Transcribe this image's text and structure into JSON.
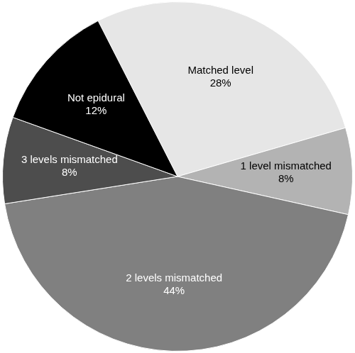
{
  "chart_data": {
    "type": "pie",
    "categories": [
      "Matched level",
      "1 level mismatched",
      "2 levels mismatched",
      "3 levels mismatched",
      "Not epidural"
    ],
    "values": [
      28,
      8,
      44,
      8,
      12
    ],
    "value_labels": [
      "28%",
      "8%",
      "44%",
      "8%",
      "12%"
    ],
    "colors": [
      "#e6e6e6",
      "#b3b3b3",
      "#808080",
      "#4d4d4d",
      "#000000"
    ],
    "data_labels": true
  }
}
